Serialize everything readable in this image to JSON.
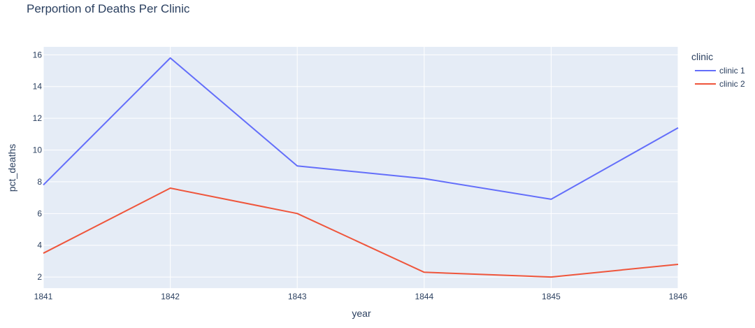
{
  "chart_data": {
    "type": "line",
    "title": "Perportion of Deaths Per Clinic",
    "xlabel": "year",
    "ylabel": "pct_deaths",
    "x": [
      1841,
      1842,
      1843,
      1844,
      1845,
      1846
    ],
    "xlim": [
      1841,
      1846
    ],
    "ylim": [
      1.3,
      16.5
    ],
    "yticks": [
      2,
      4,
      6,
      8,
      10,
      12,
      14,
      16
    ],
    "grid": true,
    "legend_title": "clinic",
    "legend_position": "right",
    "series": [
      {
        "name": "clinic 1",
        "color": "#636efa",
        "values": [
          7.8,
          15.8,
          9.0,
          8.2,
          6.9,
          11.4
        ]
      },
      {
        "name": "clinic 2",
        "color": "#ef553b",
        "values": [
          3.5,
          7.6,
          6.0,
          2.3,
          2.0,
          2.8
        ]
      }
    ],
    "colors": {
      "plot_background": "#e5ecf6",
      "grid": "#ffffff",
      "text": "#2a3f5f"
    }
  }
}
